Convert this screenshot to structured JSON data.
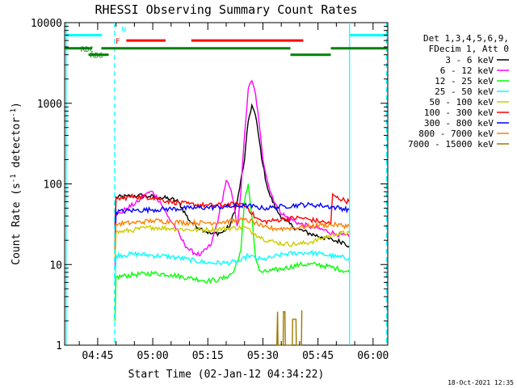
{
  "chart_data": {
    "type": "line",
    "title": "RHESSI Observing Summary Count Rates",
    "xlabel": "Start Time (02-Jan-12 04:34:22)",
    "ylabel": "Count Rate (s⁻¹ detector⁻¹)",
    "ylabel_main": "Count Rate (s",
    "ylabel_sup1": "-1",
    "ylabel_mid": " detector",
    "ylabel_sup2": "-1",
    "ylabel_end": ")",
    "yscale": "log",
    "ylim": [
      1,
      10000
    ],
    "xlim": [
      36.0,
      124.0
    ],
    "x_unit": "minutes after 04:00",
    "y_ticks": [
      {
        "value": 1,
        "label": "1"
      },
      {
        "value": 10,
        "label": "10"
      },
      {
        "value": 100,
        "label": "100"
      },
      {
        "value": 1000,
        "label": "1000"
      },
      {
        "value": 10000,
        "label": "10000"
      }
    ],
    "x_ticks": [
      {
        "value": 45,
        "label": "04:45"
      },
      {
        "value": 60,
        "label": "05:00"
      },
      {
        "value": 75,
        "label": "05:15"
      },
      {
        "value": 90,
        "label": "05:30"
      },
      {
        "value": 105,
        "label": "05:45"
      },
      {
        "value": 120,
        "label": "06:00"
      }
    ],
    "legend_header": [
      "Det 1,3,4,5,6,9,",
      "FDecim 1, Att 0"
    ],
    "legend_position": "right",
    "timestamp": "18-Oct-2021 12:35",
    "series": [
      {
        "name": "3 - 6 keV",
        "color": "#000000",
        "x": [
          49.7,
          50,
          53,
          56,
          59,
          62,
          65,
          67,
          70,
          73,
          76,
          79,
          81,
          83,
          85,
          86,
          87,
          88,
          89,
          90,
          91,
          92,
          94,
          96,
          98,
          100,
          103,
          106,
          109,
          112,
          113.5
        ],
        "y": [
          15,
          68,
          70,
          72,
          70,
          68,
          65,
          60,
          35,
          28,
          24,
          25,
          30,
          60,
          200,
          600,
          950,
          700,
          350,
          170,
          100,
          70,
          45,
          35,
          30,
          27,
          24,
          22,
          20,
          19,
          17
        ]
      },
      {
        "name": "6 - 12 keV",
        "color": "#ff00ff",
        "x": [
          49.7,
          50,
          53,
          56,
          58,
          60,
          62,
          64,
          66,
          68,
          70,
          73,
          76,
          78,
          80,
          81,
          82,
          83,
          84,
          85,
          86,
          87,
          88,
          89,
          90,
          92,
          94,
          96,
          100,
          105,
          110,
          113.5
        ],
        "y": [
          9,
          40,
          50,
          60,
          75,
          80,
          60,
          40,
          30,
          20,
          15,
          13,
          18,
          40,
          110,
          90,
          60,
          30,
          80,
          400,
          1500,
          1900,
          1300,
          550,
          200,
          80,
          50,
          40,
          32,
          28,
          24,
          22
        ]
      },
      {
        "name": "12 - 25 keV",
        "color": "#00ff00",
        "x": [
          49.7,
          50,
          55,
          60,
          65,
          70,
          75,
          78,
          80,
          82,
          84,
          85,
          86,
          87,
          88,
          89,
          90,
          93,
          96,
          100,
          105,
          110,
          113.5
        ],
        "y": [
          2,
          7,
          7.5,
          7.8,
          7.5,
          6.8,
          6.3,
          6.5,
          7,
          8,
          15,
          60,
          100,
          40,
          12,
          8.5,
          8,
          8.5,
          9,
          10,
          10,
          9,
          8
        ]
      },
      {
        "name": "25 - 50 keV",
        "color": "#00ffff",
        "x": [
          49.7,
          50,
          55,
          60,
          65,
          70,
          75,
          80,
          84,
          86,
          88,
          90,
          93,
          96,
          100,
          103,
          106,
          110,
          113.5
        ],
        "y": [
          6,
          13,
          13.5,
          13,
          12.5,
          11.5,
          10.5,
          10.5,
          11,
          13,
          12,
          11.5,
          12.5,
          13.5,
          14,
          14,
          13.5,
          12.5,
          12
        ]
      },
      {
        "name": "50 - 100 keV",
        "color": "#cccc00",
        "x": [
          49.7,
          50,
          55,
          60,
          65,
          70,
          75,
          80,
          85,
          88,
          90,
          93,
          96,
          100,
          103,
          106,
          110,
          113.5
        ],
        "y": [
          12,
          25,
          27,
          29,
          28,
          27,
          27,
          28,
          29,
          24,
          21,
          19,
          18,
          18,
          19,
          21,
          24,
          25
        ]
      },
      {
        "name": "100 - 300 keV",
        "color": "#ff0000",
        "x": [
          49.7,
          50,
          55,
          60,
          65,
          70,
          75,
          80,
          84,
          86,
          88,
          90,
          93,
          96,
          100,
          103,
          106,
          108.5,
          109,
          110,
          113.5
        ],
        "y": [
          30,
          65,
          70,
          68,
          60,
          56,
          54,
          55,
          57,
          50,
          38,
          34,
          35,
          37,
          38,
          36,
          34,
          32,
          75,
          68,
          60
        ]
      },
      {
        "name": "300 - 800 keV",
        "color": "#0000ff",
        "x": [
          49.7,
          50,
          55,
          60,
          65,
          70,
          75,
          80,
          85,
          88,
          90,
          93,
          96,
          100,
          103,
          106,
          110,
          113.5
        ],
        "y": [
          22,
          45,
          47,
          48,
          49,
          50,
          51,
          52,
          54,
          52,
          50,
          51,
          53,
          55,
          55,
          54,
          51,
          48
        ]
      },
      {
        "name": "800 - 7000 keV",
        "color": "#ff8000",
        "x": [
          49.7,
          50,
          55,
          60,
          65,
          70,
          75,
          80,
          85,
          88,
          90,
          93,
          96,
          100,
          103,
          106,
          110,
          113.5
        ],
        "y": [
          16,
          32,
          33,
          35,
          34,
          33,
          33,
          34,
          36,
          33,
          29,
          28,
          28,
          29,
          30,
          31,
          31,
          30
        ]
      },
      {
        "name": "7000 - 15000 keV",
        "color": "#a07800",
        "x": [
          93.8,
          94,
          94.1,
          95.5,
          95.6,
          96,
          96.1,
          98,
          98.1,
          99,
          99.1,
          100.5,
          100.6
        ],
        "y": [
          1,
          2.6,
          1,
          1,
          2.6,
          2.6,
          1,
          1,
          2.1,
          2.1,
          1,
          1,
          2.7
        ]
      }
    ],
    "flags": [
      {
        "name": "N",
        "color": "#00ffff",
        "label": "N",
        "row": "top",
        "y_value": 7000,
        "segments": [
          [
            36.0,
            46.2
          ],
          [
            113.7,
            123.8
          ]
        ]
      },
      {
        "name": "F",
        "color": "#ff0000",
        "label": "F",
        "row": "upper",
        "y_value": 6000,
        "segments": [
          [
            52.8,
            63.5
          ],
          [
            70.5,
            101.0
          ]
        ]
      },
      {
        "name": "RDC",
        "color": "#008000",
        "label": "RDC",
        "row": "middle",
        "y_value": 4800,
        "segments": [
          [
            36.0,
            43.5
          ],
          [
            46.0,
            97.5
          ],
          [
            108.5,
            124.0
          ]
        ]
      },
      {
        "name": "RB6",
        "color": "#008000",
        "label": "RB6",
        "row": "lower",
        "y_value": 4000,
        "segments": [
          [
            42.5,
            48.0
          ],
          [
            97.5,
            108.5
          ]
        ]
      }
    ],
    "vertical_markers": [
      {
        "x": 36.4,
        "color": "#00ffff",
        "style": "solid"
      },
      {
        "x": 49.6,
        "color": "#00ffff",
        "style": "dashed"
      },
      {
        "x": 113.6,
        "color": "#00ffff",
        "style": "solid"
      },
      {
        "x": 123.7,
        "color": "#00ffff",
        "style": "dashed"
      }
    ]
  }
}
